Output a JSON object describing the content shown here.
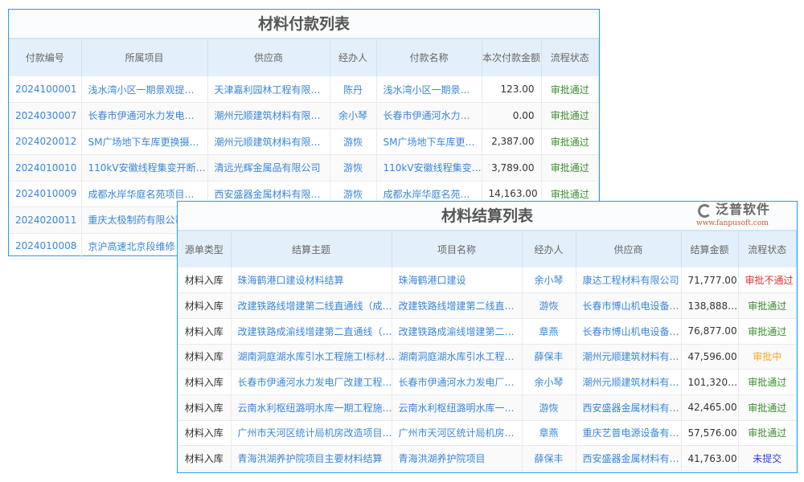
{
  "payment": {
    "title": "材料付款列表",
    "headers": [
      "付款编号",
      "所属项目",
      "供应商",
      "经办人",
      "付款名称",
      "本次付款金额",
      "流程状态"
    ],
    "rows": [
      [
        "2024100001",
        "浅水湾小区一期景观提…",
        "天津嘉利园林工程有限…",
        "陈丹",
        "浅水湾小区一期景…",
        "123.00",
        "审批通过"
      ],
      [
        "2024030007",
        "长春市伊通河水力发电…",
        "潮州元顺建筑材料有限…",
        "余小琴",
        "长春市伊通河水力…",
        "0.00",
        "审批通过"
      ],
      [
        "2024020012",
        "SM广场地下车库更换摄…",
        "潮州元顺建筑材料有限…",
        "游恢",
        "SM广场地下车库更…",
        "2,387.00",
        "审批通过"
      ],
      [
        "2024010010",
        "110kV安徽线程集变开断…",
        "清远光辉金属品有限公司",
        "游恢",
        "110kV安徽线程集变…",
        "3,789.00",
        "审批通过"
      ],
      [
        "2024010009",
        "成都水岸华庭名苑项目…",
        "西安盛器金属材料有限…",
        "游恢",
        "成都水岸华庭名苑…",
        "14,163.00",
        "审批通过"
      ],
      [
        "2024020011",
        "重庆太极制药有限公司",
        "",
        "",
        "",
        "",
        ""
      ],
      [
        "2024010008",
        "京沪高速北京段维修",
        "",
        "",
        "",
        "",
        ""
      ]
    ]
  },
  "settlement": {
    "title": "材料结算列表",
    "headers": [
      "源单类型",
      "结算主题",
      "项目名称",
      "经办人",
      "供应商",
      "结算金额",
      "流程状态"
    ],
    "rows": [
      [
        "材料入库",
        "珠海鹤港口建设材料结算",
        "珠海鹤港口建设",
        "余小琴",
        "康达工程材料有限公司",
        "71,777.00",
        "审批不通过"
      ],
      [
        "材料入库",
        "改建铁路线增建第二线直通线（成…",
        "改建铁路线增建第二线直…",
        "游恢",
        "长春市博山机电设备…",
        "138,888…",
        "审批通过"
      ],
      [
        "材料入库",
        "改建铁路成渝线增建第二直通线（…",
        "改建铁路成渝线增建第二…",
        "章燕",
        "长春市博山机电设备…",
        "76,877.00",
        "审批通过"
      ],
      [
        "材料入库",
        "湖南洞庭湖水库引水工程施工I标材…",
        "湖南洞庭湖水库引水工程…",
        "薛保丰",
        "潮州元顺建筑材料有…",
        "47,596.00",
        "审批中"
      ],
      [
        "材料入库",
        "长春市伊通河水力发电厂改建工程…",
        "长春市伊通河水力发电厂…",
        "余小琴",
        "潮州元顺建筑材料有…",
        "101,320…",
        "审批通过"
      ],
      [
        "材料入库",
        "云南水利枢纽潞明水库一期工程施…",
        "云南水利枢纽潞明水库一…",
        "游恢",
        "西安盛器金属材料有…",
        "42,465.00",
        "审批通过"
      ],
      [
        "材料入库",
        "广州市天河区统计局机房改造项目…",
        "广州市天河区统计局机房…",
        "章燕",
        "重庆艺普电源设备有…",
        "57,576.00",
        "审批通过"
      ],
      [
        "材料入库",
        "青海洪湖养护院项目主要材料结算",
        "青海洪湖养护院项目",
        "薛保丰",
        "西安盛器金属材料有…",
        "41,763.00",
        "未提交"
      ]
    ]
  },
  "watermark": {
    "brand": "泛普软件",
    "url": "www.fanpusoft.com"
  }
}
